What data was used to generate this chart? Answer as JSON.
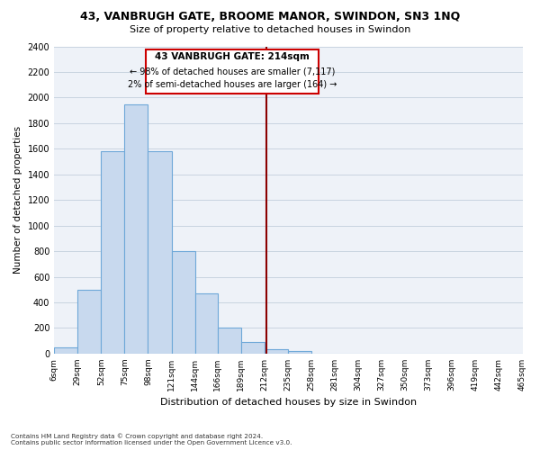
{
  "title": "43, VANBRUGH GATE, BROOME MANOR, SWINDON, SN3 1NQ",
  "subtitle": "Size of property relative to detached houses in Swindon",
  "xlabel": "Distribution of detached houses by size in Swindon",
  "ylabel": "Number of detached properties",
  "footnote1": "Contains HM Land Registry data © Crown copyright and database right 2024.",
  "footnote2": "Contains public sector information licensed under the Open Government Licence v3.0.",
  "annotation_title": "43 VANBRUGH GATE: 214sqm",
  "annotation_line1": "← 98% of detached houses are smaller (7,117)",
  "annotation_line2": "2% of semi-detached houses are larger (164) →",
  "property_size": 214,
  "bin_edges": [
    6,
    29,
    52,
    75,
    98,
    121,
    144,
    166,
    189,
    212,
    235,
    258,
    281,
    304,
    327,
    350,
    373,
    396,
    419,
    442,
    465
  ],
  "bin_counts": [
    50,
    500,
    1580,
    1950,
    1580,
    800,
    470,
    200,
    90,
    35,
    20,
    0,
    0,
    0,
    0,
    0,
    0,
    0,
    0,
    0
  ],
  "bar_color": "#c8d9ee",
  "bar_edge_color": "#6ea8d8",
  "vline_color": "#8b0000",
  "grid_color": "#c8d4e0",
  "background_color": "#eef2f8",
  "ylim": [
    0,
    2400
  ],
  "yticks": [
    0,
    200,
    400,
    600,
    800,
    1000,
    1200,
    1400,
    1600,
    1800,
    2000,
    2200,
    2400
  ],
  "tick_labels": [
    "6sqm",
    "29sqm",
    "52sqm",
    "75sqm",
    "98sqm",
    "121sqm",
    "144sqm",
    "166sqm",
    "189sqm",
    "212sqm",
    "235sqm",
    "258sqm",
    "281sqm",
    "304sqm",
    "327sqm",
    "350sqm",
    "373sqm",
    "396sqm",
    "419sqm",
    "442sqm",
    "465sqm"
  ],
  "annotation_box_color": "#cc0000",
  "annotation_box_facecolor": "white"
}
